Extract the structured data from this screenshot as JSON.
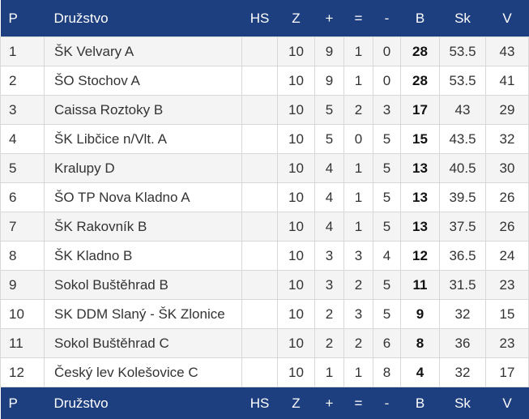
{
  "table": {
    "headers": {
      "position": "P",
      "team": "Družstvo",
      "hs": "HS",
      "played": "Z",
      "wins": "+",
      "draws": "=",
      "losses": "-",
      "points": "B",
      "score": "Sk",
      "v": "V"
    },
    "rows": [
      {
        "position": "1",
        "team": "ŠK Velvary A",
        "hs": "",
        "played": "10",
        "wins": "9",
        "draws": "1",
        "losses": "0",
        "points": "28",
        "score": "53.5",
        "v": "43"
      },
      {
        "position": "2",
        "team": "ŠO Stochov A",
        "hs": "",
        "played": "10",
        "wins": "9",
        "draws": "1",
        "losses": "0",
        "points": "28",
        "score": "53.5",
        "v": "41"
      },
      {
        "position": "3",
        "team": "Caissa Roztoky B",
        "hs": "",
        "played": "10",
        "wins": "5",
        "draws": "2",
        "losses": "3",
        "points": "17",
        "score": "43",
        "v": "29"
      },
      {
        "position": "4",
        "team": "ŠK Libčice n/Vlt. A",
        "hs": "",
        "played": "10",
        "wins": "5",
        "draws": "0",
        "losses": "5",
        "points": "15",
        "score": "43.5",
        "v": "32"
      },
      {
        "position": "5",
        "team": "Kralupy D",
        "hs": "",
        "played": "10",
        "wins": "4",
        "draws": "1",
        "losses": "5",
        "points": "13",
        "score": "40.5",
        "v": "30"
      },
      {
        "position": "6",
        "team": "ŠO TP Nova Kladno A",
        "hs": "",
        "played": "10",
        "wins": "4",
        "draws": "1",
        "losses": "5",
        "points": "13",
        "score": "39.5",
        "v": "26"
      },
      {
        "position": "7",
        "team": "ŠK Rakovník B",
        "hs": "",
        "played": "10",
        "wins": "4",
        "draws": "1",
        "losses": "5",
        "points": "13",
        "score": "37.5",
        "v": "26"
      },
      {
        "position": "8",
        "team": "ŠK Kladno B",
        "hs": "",
        "played": "10",
        "wins": "3",
        "draws": "3",
        "losses": "4",
        "points": "12",
        "score": "36.5",
        "v": "24"
      },
      {
        "position": "9",
        "team": "Sokol Buštěhrad B",
        "hs": "",
        "played": "10",
        "wins": "3",
        "draws": "2",
        "losses": "5",
        "points": "11",
        "score": "31.5",
        "v": "23"
      },
      {
        "position": "10",
        "team": "SK DDM Slaný - ŠK Zlonice",
        "hs": "",
        "played": "10",
        "wins": "2",
        "draws": "3",
        "losses": "5",
        "points": "9",
        "score": "32",
        "v": "15"
      },
      {
        "position": "11",
        "team": "Sokol Buštěhrad C",
        "hs": "",
        "played": "10",
        "wins": "2",
        "draws": "2",
        "losses": "6",
        "points": "8",
        "score": "36",
        "v": "23"
      },
      {
        "position": "12",
        "team": "Český lev Kolešovice C",
        "hs": "",
        "played": "10",
        "wins": "1",
        "draws": "1",
        "losses": "8",
        "points": "4",
        "score": "32",
        "v": "17"
      }
    ]
  },
  "colors": {
    "header_bg": "#1d3f7f",
    "header_text": "#ffffff",
    "row_alt": "#f4f4f4",
    "row": "#ffffff",
    "border": "#d8d8d8"
  }
}
